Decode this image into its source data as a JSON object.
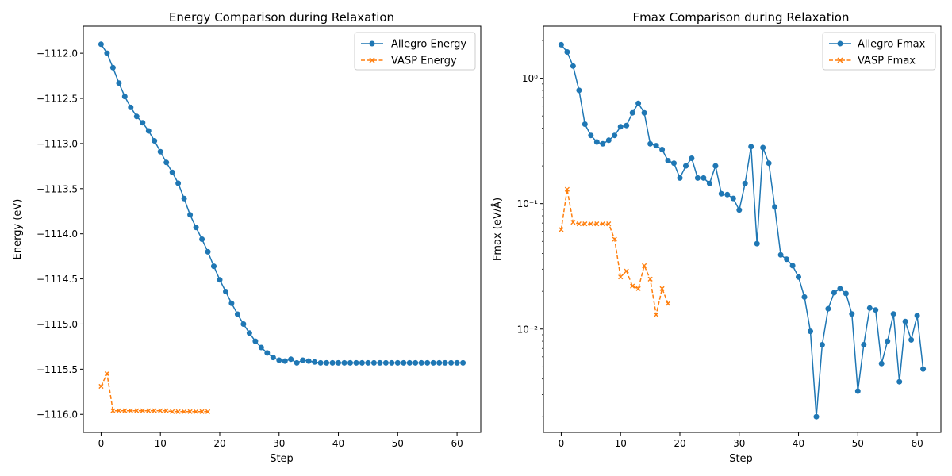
{
  "chart_data": [
    {
      "type": "line",
      "title": "Energy Comparison during Relaxation",
      "xlabel": "Step",
      "ylabel": "Energy (eV)",
      "xlim": [
        -3,
        64
      ],
      "ylim": [
        -1116.2,
        -1111.7
      ],
      "xticks": [
        0,
        10,
        20,
        30,
        40,
        50,
        60
      ],
      "xtick_labels": [
        "0",
        "10",
        "20",
        "30",
        "40",
        "50",
        "60"
      ],
      "yticks": [
        -1112.0,
        -1112.5,
        -1113.0,
        -1113.5,
        -1114.0,
        -1114.5,
        -1115.0,
        -1115.5,
        -1116.0
      ],
      "ytick_labels": [
        "−1112.0",
        "−1112.5",
        "−1113.0",
        "−1113.5",
        "−1114.0",
        "−1114.5",
        "−1115.0",
        "−1115.5",
        "−1116.0"
      ],
      "scale": "linear",
      "grid": false,
      "legend_position": "top-right",
      "series": [
        {
          "name": "Allegro Energy",
          "color": "#1f77b4",
          "marker": "circle",
          "linestyle": "solid",
          "values": [
            -1111.9,
            -1112.0,
            -1112.16,
            -1112.33,
            -1112.48,
            -1112.6,
            -1112.7,
            -1112.77,
            -1112.86,
            -1112.97,
            -1113.09,
            -1113.21,
            -1113.32,
            -1113.44,
            -1113.61,
            -1113.79,
            -1113.93,
            -1114.06,
            -1114.2,
            -1114.36,
            -1114.51,
            -1114.64,
            -1114.77,
            -1114.89,
            -1115.0,
            -1115.1,
            -1115.19,
            -1115.26,
            -1115.32,
            -1115.37,
            -1115.4,
            -1115.41,
            -1115.39,
            -1115.43,
            -1115.4,
            -1115.41,
            -1115.42,
            -1115.43,
            -1115.43,
            -1115.43,
            -1115.43,
            -1115.43,
            -1115.43,
            -1115.43,
            -1115.43,
            -1115.43,
            -1115.43,
            -1115.43,
            -1115.43,
            -1115.43,
            -1115.43,
            -1115.43,
            -1115.43,
            -1115.43,
            -1115.43,
            -1115.43,
            -1115.43,
            -1115.43,
            -1115.43,
            -1115.43,
            -1115.43,
            -1115.43
          ]
        },
        {
          "name": "VASP Energy",
          "color": "#ff7f0e",
          "marker": "x",
          "linestyle": "dashed",
          "values": [
            -1115.69,
            -1115.55,
            -1115.96,
            -1115.96,
            -1115.96,
            -1115.96,
            -1115.96,
            -1115.96,
            -1115.96,
            -1115.96,
            -1115.96,
            -1115.96,
            -1115.97,
            -1115.97,
            -1115.97,
            -1115.97,
            -1115.97,
            -1115.97,
            -1115.97
          ]
        }
      ]
    },
    {
      "type": "line",
      "title": "Fmax Comparison during Relaxation",
      "xlabel": "Step",
      "ylabel": "Fmax (eV/Å)",
      "xlim": [
        -3,
        64
      ],
      "ylim": [
        0.0015,
        2.6
      ],
      "xticks": [
        0,
        10,
        20,
        30,
        40,
        50,
        60
      ],
      "xtick_labels": [
        "0",
        "10",
        "20",
        "30",
        "40",
        "50",
        "60"
      ],
      "yticks": [
        0.01,
        0.1,
        1
      ],
      "ytick_labels": [
        "10⁻²",
        "10⁻¹",
        "10⁰"
      ],
      "scale": "log",
      "grid": false,
      "legend_position": "top-right",
      "series": [
        {
          "name": "Allegro Fmax",
          "color": "#1f77b4",
          "marker": "circle",
          "linestyle": "solid",
          "values": [
            1.85,
            1.62,
            1.25,
            0.8,
            0.43,
            0.35,
            0.31,
            0.3,
            0.32,
            0.35,
            0.41,
            0.42,
            0.53,
            0.63,
            0.53,
            0.3,
            0.29,
            0.27,
            0.22,
            0.21,
            0.16,
            0.2,
            0.23,
            0.16,
            0.16,
            0.145,
            0.2,
            0.12,
            0.118,
            0.11,
            0.089,
            0.145,
            0.285,
            0.048,
            0.28,
            0.21,
            0.094,
            0.039,
            0.036,
            0.032,
            0.026,
            0.018,
            0.0096,
            0.002,
            0.0075,
            0.0145,
            0.0195,
            0.021,
            0.0192,
            0.0132,
            0.0032,
            0.0075,
            0.0147,
            0.0142,
            0.0053,
            0.008,
            0.0132,
            0.0038,
            0.0115,
            0.0082,
            0.0128,
            0.0048
          ]
        },
        {
          "name": "VASP Fmax",
          "color": "#ff7f0e",
          "marker": "x",
          "linestyle": "dashed",
          "values": [
            0.062,
            0.13,
            0.071,
            0.069,
            0.069,
            0.069,
            0.069,
            0.069,
            0.069,
            0.052,
            0.026,
            0.029,
            0.022,
            0.021,
            0.032,
            0.025,
            0.013,
            0.021,
            0.016
          ]
        }
      ]
    }
  ]
}
